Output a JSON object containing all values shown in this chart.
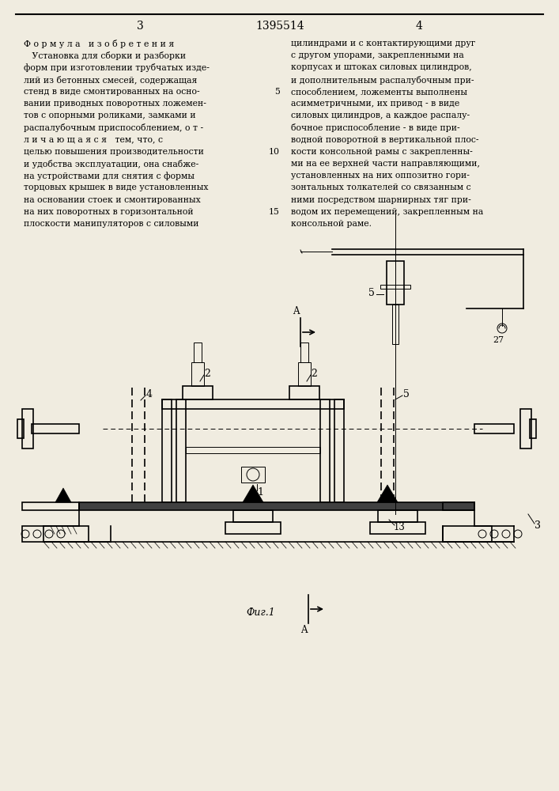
{
  "page_width": 7.07,
  "page_height": 10.0,
  "bg_color": "#f0ece0",
  "header_num_left": "3",
  "header_num_center": "1395514",
  "header_num_right": "4",
  "left_col_lines": [
    "Ф о р м у л а   и з о б р е т е н и я",
    "   Установка для сборки и разборки",
    "форм при изготовлении трубчатых изде-",
    "лий из бетонных смесей, содержащая",
    "стенд в виде смонтированных на осно-",
    "вании приводных поворотных ложемен-",
    "тов с опорными роликами, замками и",
    "распалубочным приспособлением, о т -",
    "л и ч а ю щ а я с я   тем, что, с",
    "целью повышения производительности",
    "и удобства эксплуатации, она снабже-",
    "на устройствами для снятия с формы",
    "торцовых крышек в виде установленных",
    "на основании стоек и смонтированных",
    "на них поворотных в горизонтальной",
    "плоскости манипуляторов с силовыми"
  ],
  "right_col_lines": [
    "цилиндрами и с контактирующими друг",
    "с другом упорами, закрепленными на",
    "корпусах и штоках силовых цилиндров,",
    "и дополнительным распалубочным при-",
    "способлением, ложементы выполнены",
    "асимметричными, их привод - в виде",
    "силовых цилиндров, а каждое распалу-",
    "бочное приспособление - в виде при-",
    "водной поворотной в вертикальной плос-",
    "кости консольной рамы с закрепленны-",
    "ми на ее верхней части направляющими,",
    "установленных на них оппозитно гори-",
    "зонтальных толкателей со связанным с",
    "ними посредством шарнирных тяг при-",
    "водом их перемещений, закрепленным на",
    "консольной раме."
  ],
  "line_numbers": [
    [
      "5",
      4
    ],
    [
      "10",
      9
    ],
    [
      "15",
      14
    ]
  ],
  "fig_label": "Фиг.1"
}
